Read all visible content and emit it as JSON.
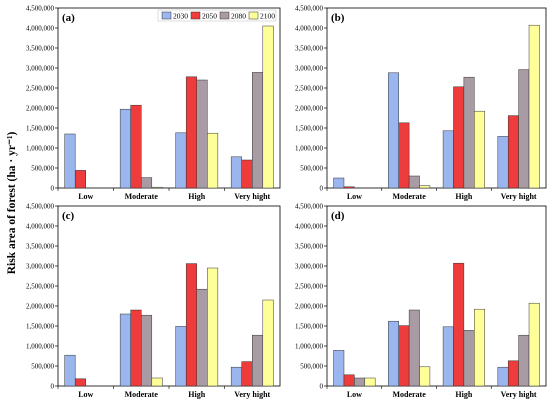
{
  "figure": {
    "ylabel": "Risk area of forest (ha · yr⁻¹)"
  },
  "legend": {
    "entries": [
      "2030",
      "2050",
      "2080",
      "2100"
    ]
  },
  "colors": {
    "2030": "#9BB5EE",
    "2050": "#EE3B3B",
    "2080": "#A89BA3",
    "2100": "#FFFF99",
    "stroke": "#333333",
    "axis": "#000000"
  },
  "chart_data": [
    {
      "type": "bar",
      "panel_label": "(a)",
      "categories": [
        "Low",
        "Moderate",
        "High",
        "Very hight"
      ],
      "ylim": [
        0,
        4500000
      ],
      "yticks": [
        "0",
        "500,000",
        "1,000,000",
        "1,500,000",
        "2,000,000",
        "2,500,000",
        "3,000,000",
        "3,500,000",
        "4,000,000",
        "4,500,000"
      ],
      "legend_position": "top-center",
      "series": [
        {
          "name": "2030",
          "values": [
            1350000,
            1970000,
            1380000,
            780000
          ]
        },
        {
          "name": "2050",
          "values": [
            440000,
            2070000,
            2780000,
            700000
          ]
        },
        {
          "name": "2080",
          "values": [
            0,
            260000,
            2700000,
            2890000
          ]
        },
        {
          "name": "2100",
          "values": [
            0,
            20000,
            1370000,
            4050000
          ]
        }
      ]
    },
    {
      "type": "bar",
      "panel_label": "(b)",
      "categories": [
        "Low",
        "Moderate",
        "High",
        "Very hight"
      ],
      "ylim": [
        0,
        4500000
      ],
      "yticks": [
        "0",
        "500,000",
        "1,000,000",
        "1,500,000",
        "2,000,000",
        "2,500,000",
        "3,000,000",
        "3,500,000",
        "4,000,000",
        "4,500,000"
      ],
      "series": [
        {
          "name": "2030",
          "values": [
            250000,
            2880000,
            1430000,
            1290000
          ]
        },
        {
          "name": "2050",
          "values": [
            30000,
            1630000,
            2530000,
            1810000
          ]
        },
        {
          "name": "2080",
          "values": [
            0,
            300000,
            2770000,
            2960000
          ]
        },
        {
          "name": "2100",
          "values": [
            0,
            60000,
            1920000,
            4070000
          ]
        }
      ]
    },
    {
      "type": "bar",
      "panel_label": "(c)",
      "categories": [
        "Low",
        "Moderate",
        "High",
        "Very hight"
      ],
      "ylim": [
        0,
        4500000
      ],
      "yticks": [
        "0",
        "500,000",
        "1,000,000",
        "1,500,000",
        "2,000,000",
        "2,500,000",
        "3,000,000",
        "3,500,000",
        "4,000,000",
        "4,500,000"
      ],
      "series": [
        {
          "name": "2030",
          "values": [
            770000,
            1800000,
            1490000,
            470000
          ]
        },
        {
          "name": "2050",
          "values": [
            180000,
            1900000,
            3060000,
            610000
          ]
        },
        {
          "name": "2080",
          "values": [
            0,
            1770000,
            2420000,
            1270000
          ]
        },
        {
          "name": "2100",
          "values": [
            0,
            200000,
            2950000,
            2150000
          ]
        }
      ]
    },
    {
      "type": "bar",
      "panel_label": "(d)",
      "categories": [
        "Low",
        "Moderate",
        "High",
        "Very hight"
      ],
      "ylim": [
        0,
        4500000
      ],
      "yticks": [
        "0",
        "500,000",
        "1,000,000",
        "1,500,000",
        "2,000,000",
        "2,500,000",
        "3,000,000",
        "3,500,000",
        "4,000,000",
        "4,500,000"
      ],
      "series": [
        {
          "name": "2030",
          "values": [
            890000,
            1620000,
            1480000,
            470000
          ]
        },
        {
          "name": "2050",
          "values": [
            280000,
            1510000,
            3070000,
            630000
          ]
        },
        {
          "name": "2080",
          "values": [
            200000,
            1900000,
            1390000,
            1270000
          ]
        },
        {
          "name": "2100",
          "values": [
            200000,
            480000,
            1920000,
            2070000
          ]
        }
      ]
    }
  ]
}
